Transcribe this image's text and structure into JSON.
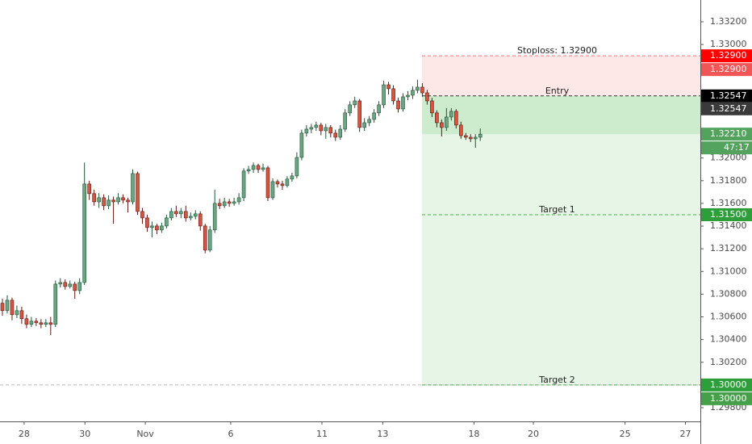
{
  "chart_data": {
    "type": "candlestick",
    "up_color": "#6ba583",
    "down_color": "#d75442",
    "xlim": [
      -0.5,
      144.6
    ],
    "ylim": [
      1.29679,
      1.33392
    ],
    "xticks": [
      {
        "value": 4.5,
        "label": "28"
      },
      {
        "value": 17.1,
        "label": "30"
      },
      {
        "value": 29.6,
        "label": "Nov"
      },
      {
        "value": 47.3,
        "label": "6"
      },
      {
        "value": 66.2,
        "label": "11"
      },
      {
        "value": 78.8,
        "label": "13"
      },
      {
        "value": 97.7,
        "label": "18"
      },
      {
        "value": 110,
        "label": "20"
      },
      {
        "value": 129,
        "label": "25"
      },
      {
        "value": 141.5,
        "label": "27"
      }
    ],
    "yticks": [
      {
        "value": 1.332,
        "label": "1.33200"
      },
      {
        "value": 1.33,
        "label": "1.33000"
      },
      {
        "value": 1.32,
        "label": "1.32000"
      },
      {
        "value": 1.318,
        "label": "1.31800"
      },
      {
        "value": 1.316,
        "label": "1.31600"
      },
      {
        "value": 1.314,
        "label": "1.31400"
      },
      {
        "value": 1.312,
        "label": "1.31200"
      },
      {
        "value": 1.31,
        "label": "1.31000"
      },
      {
        "value": 1.308,
        "label": "1.30800"
      },
      {
        "value": 1.306,
        "label": "1.30600"
      },
      {
        "value": 1.304,
        "label": "1.30400"
      },
      {
        "value": 1.302,
        "label": "1.30200"
      },
      {
        "value": 1.298,
        "label": "1.29800"
      }
    ],
    "open": [
      1.3072,
      1.30655,
      1.30747,
      1.30619,
      1.30655,
      1.30584,
      1.30534,
      1.30562,
      1.30548,
      1.30534,
      1.30548,
      1.30534,
      1.30889,
      1.30903,
      1.30868,
      1.30889,
      1.30832,
      1.30903,
      1.31771,
      1.31686,
      1.31614,
      1.3165,
      1.31579,
      1.31629,
      1.31614,
      1.3165,
      1.31629,
      1.31614,
      1.31863,
      1.31529,
      1.31472,
      1.31387,
      1.31401,
      1.31366,
      1.31401,
      1.31472,
      1.31529,
      1.31508,
      1.31529,
      1.31472,
      1.31486,
      1.31508,
      1.31401,
      1.31188,
      1.31366,
      1.316,
      1.31579,
      1.31614,
      1.316,
      1.31614,
      1.3165,
      1.31885,
      1.31899,
      1.31934,
      1.31899,
      1.31913,
      1.3165,
      1.31792,
      1.31771,
      1.31757,
      1.31814,
      1.31842,
      1.32005,
      1.32219,
      1.32254,
      1.32269,
      1.3229,
      1.3224,
      1.32269,
      1.32219,
      1.32183,
      1.32254,
      1.32397,
      1.32468,
      1.32503,
      1.32269,
      1.32311,
      1.3234,
      1.32397,
      1.32468,
      1.32645,
      1.3261,
      1.32503,
      1.32432,
      1.32539,
      1.32553,
      1.32596,
      1.32624,
      1.32574,
      1.32503,
      1.32397,
      1.32311,
      1.32269,
      1.32361,
      1.32411,
      1.3229,
      1.32197,
      1.32183,
      1.32169,
      1.32183
    ],
    "high": [
      1.3076,
      1.3079,
      1.3077,
      1.307,
      1.3069,
      1.3062,
      1.306,
      1.3059,
      1.3058,
      1.3058,
      1.306,
      1.3092,
      1.3094,
      1.3093,
      1.3092,
      1.3091,
      1.3094,
      1.3196,
      1.318,
      1.3172,
      1.3169,
      1.3168,
      1.3167,
      1.3166,
      1.3169,
      1.3168,
      1.3165,
      1.319,
      1.3188,
      1.3156,
      1.315,
      1.3144,
      1.3142,
      1.3143,
      1.315,
      1.3156,
      1.3158,
      1.3156,
      1.3158,
      1.3152,
      1.3154,
      1.3153,
      1.3142,
      1.314,
      1.3172,
      1.3164,
      1.3165,
      1.3164,
      1.3165,
      1.3169,
      1.3191,
      1.3193,
      1.3196,
      1.3195,
      1.3195,
      1.3193,
      1.3182,
      1.3181,
      1.318,
      1.3184,
      1.3187,
      1.3205,
      1.3225,
      1.3229,
      1.323,
      1.3232,
      1.3231,
      1.323,
      1.3229,
      1.3225,
      1.3229,
      1.3243,
      1.325,
      1.3254,
      1.3252,
      1.3235,
      1.3237,
      1.3243,
      1.325,
      1.3268,
      1.3267,
      1.3264,
      1.3253,
      1.3257,
      1.3259,
      1.3263,
      1.3269,
      1.3266,
      1.326,
      1.3253,
      1.3242,
      1.3234,
      1.3244,
      1.3244,
      1.3243,
      1.3232,
      1.3222,
      1.3221,
      1.3221,
      1.3226
    ],
    "low": [
      1.3061,
      1.3063,
      1.3057,
      1.3059,
      1.3054,
      1.305,
      1.3051,
      1.3052,
      1.305,
      1.3051,
      1.3044,
      1.3051,
      1.3086,
      1.3084,
      1.3085,
      1.3076,
      1.308,
      1.3088,
      1.3163,
      1.3158,
      1.3156,
      1.3154,
      1.3155,
      1.3142,
      1.3159,
      1.316,
      1.3152,
      1.3159,
      1.315,
      1.3142,
      1.3135,
      1.313,
      1.3133,
      1.3134,
      1.3138,
      1.3145,
      1.3148,
      1.3147,
      1.3144,
      1.3145,
      1.3146,
      1.3136,
      1.3116,
      1.3117,
      1.3134,
      1.3155,
      1.3156,
      1.3157,
      1.3158,
      1.3159,
      1.3162,
      1.3186,
      1.3187,
      1.3187,
      1.3188,
      1.3162,
      1.3163,
      1.3174,
      1.3172,
      1.3174,
      1.3179,
      1.3182,
      1.3198,
      1.3219,
      1.3222,
      1.3224,
      1.322,
      1.3217,
      1.3218,
      1.3215,
      1.3216,
      1.3223,
      1.3237,
      1.3244,
      1.3223,
      1.3224,
      1.3228,
      1.3231,
      1.3237,
      1.3244,
      1.3256,
      1.3247,
      1.324,
      1.3241,
      1.3251,
      1.3252,
      1.3257,
      1.3254,
      1.3247,
      1.3236,
      1.3227,
      1.3219,
      1.3224,
      1.3233,
      1.3226,
      1.3217,
      1.3216,
      1.3214,
      1.3209,
      1.3215
    ],
    "close": [
      1.30655,
      1.30747,
      1.30619,
      1.30655,
      1.30584,
      1.30534,
      1.30562,
      1.30548,
      1.30534,
      1.30548,
      1.30534,
      1.30889,
      1.30903,
      1.30868,
      1.30889,
      1.30832,
      1.30903,
      1.31771,
      1.31686,
      1.31614,
      1.3165,
      1.31579,
      1.31629,
      1.31614,
      1.3165,
      1.31629,
      1.31614,
      1.31863,
      1.31529,
      1.31472,
      1.31387,
      1.31401,
      1.31366,
      1.31401,
      1.31472,
      1.31529,
      1.31508,
      1.31529,
      1.31472,
      1.31486,
      1.31508,
      1.31401,
      1.31188,
      1.31366,
      1.316,
      1.31579,
      1.31614,
      1.316,
      1.31614,
      1.3165,
      1.31885,
      1.31899,
      1.31934,
      1.31899,
      1.31913,
      1.3165,
      1.31792,
      1.31771,
      1.31757,
      1.31814,
      1.31842,
      1.32005,
      1.32219,
      1.32254,
      1.32269,
      1.3229,
      1.3224,
      1.32269,
      1.32219,
      1.32183,
      1.32254,
      1.32397,
      1.32468,
      1.32503,
      1.32269,
      1.32311,
      1.3234,
      1.32397,
      1.32468,
      1.32645,
      1.3261,
      1.32503,
      1.32432,
      1.32539,
      1.32553,
      1.32596,
      1.32624,
      1.32574,
      1.32503,
      1.32397,
      1.32311,
      1.32269,
      1.32361,
      1.32411,
      1.3229,
      1.32197,
      1.32183,
      1.32169,
      1.32183,
      1.3221
    ],
    "last_price": {
      "value": 1.3221,
      "label": "1.32210"
    },
    "countdown": "47:17",
    "position": {
      "stop": {
        "text": "Stoploss: 1.32900",
        "value": 1.329,
        "axis_labels": [
          "1.32900",
          "1.32900"
        ]
      },
      "entry": {
        "text": "Entry",
        "value": 1.32547,
        "axis_labels": [
          "1.32547",
          "1.32547"
        ]
      },
      "targets": [
        {
          "text": "Target 1",
          "value": 1.315,
          "axis_labels": [
            "1.31500"
          ]
        },
        {
          "text": "Target 2",
          "value": 1.3,
          "axis_labels": [
            "1.30000",
            "1.30000"
          ]
        }
      ]
    }
  }
}
